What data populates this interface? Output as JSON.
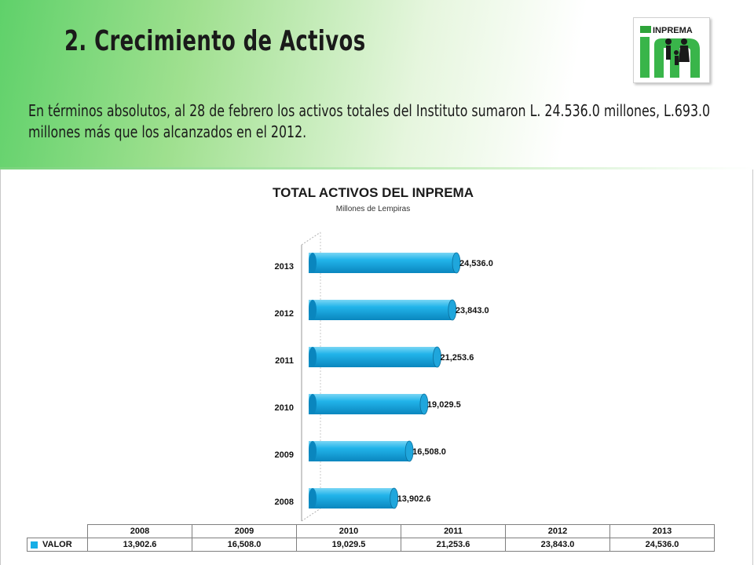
{
  "slide": {
    "title": "2. Crecimiento de Activos",
    "text": "En términos absolutos, al 28 de febrero los activos totales del Instituto sumaron L. 24.536.0 millones, L.693.0 millones más que los alcanzados en el 2012.",
    "logo_text": "INPREMA"
  },
  "colors": {
    "bar": "#16aee6",
    "bar_dark": "#0b7fb0",
    "header_green": "#5fd16a"
  },
  "chart_data": {
    "type": "bar",
    "orientation": "horizontal",
    "title": "TOTAL ACTIVOS DEL INPREMA",
    "subtitle": "Millones de Lempiras",
    "categories": [
      "2008",
      "2009",
      "2010",
      "2011",
      "2012",
      "2013"
    ],
    "series": [
      {
        "name": "VALOR",
        "values": [
          13902.6,
          16508.0,
          19029.5,
          21253.6,
          23843.0,
          24536.0
        ]
      }
    ],
    "data_labels": [
      "13,902.6",
      "16,508.0",
      "19,029.5",
      "21,253.6",
      "23,843.0",
      "24,536.0"
    ],
    "xlim": [
      0,
      24536.0
    ],
    "grid": false,
    "legend": "data-table"
  },
  "data_table": {
    "header": [
      "2008",
      "2009",
      "2010",
      "2011",
      "2012",
      "2013"
    ],
    "row_label": "VALOR",
    "values": [
      "13,902.6",
      "16,508.0",
      "19,029.5",
      "21,253.6",
      "23,843.0",
      "24,536.0"
    ]
  }
}
